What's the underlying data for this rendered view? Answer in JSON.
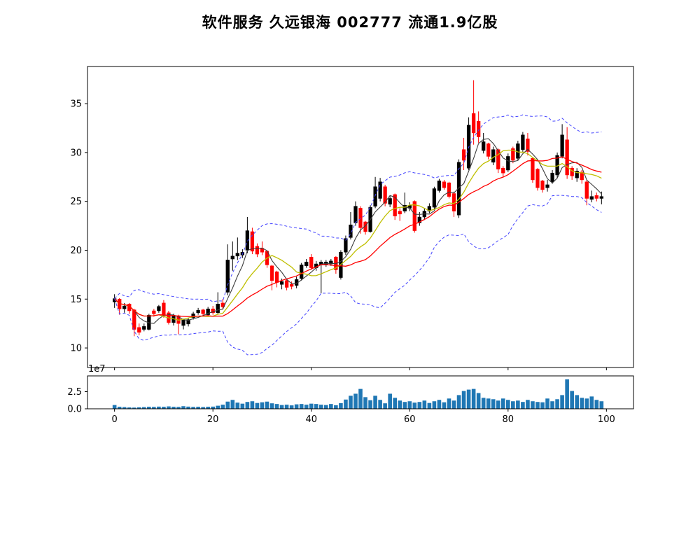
{
  "header": {
    "sector": "软件服务",
    "stock_name": "久远银海",
    "stock_code": "002777",
    "float_shares": "流通1.9亿股"
  },
  "chart_data": {
    "type": "candlestick",
    "title": "软件服务 久远银海 002777 流通1.9亿股",
    "panels": [
      "price",
      "volume"
    ],
    "x_axis": {
      "ticks": [
        0,
        20,
        40,
        60,
        80,
        100
      ],
      "xlim": [
        -5.5,
        105.5
      ]
    },
    "price_axis": {
      "ticks": [
        10,
        15,
        20,
        25,
        30,
        35
      ],
      "ylim": [
        8.0,
        38.8
      ]
    },
    "volume_axis": {
      "ticks": [
        {
          "v": 0,
          "label": "0.0"
        },
        {
          "v": 2.5,
          "label": "2.5"
        }
      ],
      "ylim": [
        0,
        4.8
      ],
      "offset_label": "1e7",
      "unit": 10000000
    },
    "colors": {
      "up": "#000000",
      "down": "#ff0000",
      "volume": "#1f77b4",
      "ma5": "#3c3c3c",
      "ma10": "#bfbf00",
      "ma20": "#ff0000",
      "band": "#4444ff",
      "spine": "#000000"
    },
    "overlays": [
      {
        "name": "MA5",
        "kind": "sma",
        "window": 5,
        "color_key": "ma5",
        "width": 1.1,
        "dash": ""
      },
      {
        "name": "MA10",
        "kind": "sma",
        "window": 10,
        "color_key": "ma10",
        "width": 1.3,
        "dash": ""
      },
      {
        "name": "MA20",
        "kind": "sma",
        "window": 20,
        "color_key": "ma20",
        "width": 1.3,
        "dash": ""
      },
      {
        "name": "BOLL",
        "kind": "bollinger",
        "window": 20,
        "mult": 2,
        "color_key": "band",
        "width": 1.0,
        "dash": "4 3"
      }
    ],
    "candles": {
      "open": [
        14.7,
        15.0,
        14.0,
        14.5,
        13.9,
        12.1,
        11.9,
        11.9,
        13.8,
        13.8,
        14.6,
        13.6,
        12.6,
        13.3,
        12.3,
        12.45,
        13.1,
        13.6,
        13.9,
        13.4,
        14.0,
        13.6,
        14.6,
        15.7,
        19.1,
        19.4,
        19.5,
        20.0,
        21.9,
        20.4,
        20.2,
        19.9,
        18.4,
        17.8,
        16.5,
        16.9,
        16.5,
        16.4,
        17.1,
        18.4,
        19.3,
        18.2,
        18.5,
        18.5,
        18.6,
        19.3,
        17.2,
        19.8,
        21.3,
        22.8,
        24.3,
        22.9,
        21.9,
        24.5,
        25.3,
        26.5,
        24.7,
        25.7,
        24.0,
        24.0,
        24.3,
        25.0,
        22.8,
        23.4,
        24.0,
        24.4,
        26.1,
        27.0,
        26.9,
        25.8,
        23.6,
        30.3,
        28.4,
        34.0,
        33.2,
        30.2,
        30.9,
        29.0,
        30.3,
        28.4,
        28.2,
        30.4,
        29.4,
        30.3,
        31.4,
        29.4,
        28.3,
        27.1,
        26.4,
        27.0,
        27.7,
        29.6,
        31.3,
        28.4,
        27.4,
        28.0,
        27.0,
        25.2,
        25.6,
        25.3
      ],
      "high": [
        15.5,
        15.1,
        14.6,
        14.6,
        14.0,
        12.5,
        12.5,
        13.5,
        14.0,
        14.4,
        14.9,
        13.8,
        13.5,
        13.4,
        13.0,
        13.1,
        13.7,
        14.1,
        14.0,
        14.2,
        14.3,
        15.7,
        15.0,
        20.6,
        20.9,
        21.3,
        20.1,
        23.4,
        22.3,
        20.7,
        20.9,
        20.0,
        18.5,
        17.9,
        17.1,
        17.0,
        16.8,
        17.3,
        18.7,
        19.1,
        19.6,
        18.9,
        19.0,
        19.0,
        19.1,
        19.4,
        20.0,
        21.5,
        23.9,
        25.0,
        24.5,
        23.0,
        24.6,
        27.5,
        27.4,
        26.7,
        25.6,
        25.8,
        24.3,
        25.9,
        24.9,
        25.1,
        23.9,
        24.3,
        24.8,
        26.5,
        27.3,
        27.2,
        27.0,
        26.0,
        29.3,
        31.5,
        33.6,
        37.4,
        34.2,
        32.0,
        31.0,
        30.6,
        30.4,
        28.6,
        29.9,
        30.6,
        31.2,
        32.1,
        32.0,
        29.5,
        28.4,
        27.2,
        27.2,
        28.2,
        30.0,
        32.9,
        32.6,
        28.6,
        28.4,
        28.2,
        27.2,
        26.1,
        25.9,
        26.0
      ],
      "low": [
        14.1,
        13.4,
        13.6,
        13.5,
        11.2,
        11.3,
        11.7,
        11.8,
        13.2,
        13.6,
        13.1,
        12.4,
        12.3,
        11.4,
        11.9,
        12.2,
        12.9,
        13.4,
        13.2,
        13.2,
        13.4,
        13.5,
        14.0,
        15.4,
        17.9,
        19.0,
        19.2,
        19.7,
        19.6,
        19.3,
        19.5,
        18.2,
        15.9,
        16.2,
        16.0,
        15.9,
        16.0,
        16.1,
        16.9,
        18.2,
        18.0,
        17.9,
        15.6,
        18.3,
        18.4,
        17.6,
        17.0,
        19.5,
        21.1,
        22.5,
        21.7,
        21.6,
        21.8,
        24.3,
        25.0,
        24.5,
        24.4,
        23.1,
        23.0,
        23.8,
        24.0,
        21.8,
        22.5,
        23.1,
        23.8,
        24.2,
        25.9,
        26.2,
        25.3,
        23.4,
        23.3,
        28.2,
        28.2,
        30.8,
        31.0,
        29.9,
        29.3,
        28.7,
        27.9,
        27.5,
        28.0,
        28.9,
        29.2,
        30.0,
        29.7,
        26.9,
        26.1,
        25.9,
        26.0,
        26.8,
        27.4,
        29.4,
        27.3,
        27.2,
        27.0,
        26.8,
        24.6,
        24.9,
        25.0,
        24.7
      ],
      "close": [
        15.05,
        14.0,
        14.3,
        13.8,
        11.9,
        11.6,
        12.2,
        13.35,
        13.5,
        14.25,
        13.3,
        12.6,
        13.25,
        12.5,
        12.85,
        12.9,
        13.5,
        13.85,
        13.5,
        14.0,
        13.6,
        14.5,
        14.2,
        19.0,
        19.4,
        19.7,
        19.8,
        22.0,
        19.9,
        19.6,
        19.8,
        18.5,
        16.9,
        16.7,
        16.8,
        16.2,
        16.3,
        17.0,
        18.5,
        18.8,
        18.2,
        18.6,
        18.8,
        18.8,
        18.9,
        18.0,
        19.8,
        21.2,
        22.6,
        24.5,
        22.3,
        21.9,
        24.4,
        26.5,
        27.0,
        24.8,
        25.3,
        23.5,
        23.7,
        24.6,
        24.6,
        22.0,
        23.4,
        24.0,
        24.5,
        26.3,
        27.1,
        26.4,
        25.5,
        24.0,
        29.0,
        29.2,
        32.8,
        32.0,
        31.6,
        31.1,
        29.6,
        30.3,
        28.3,
        27.9,
        29.6,
        29.2,
        30.9,
        31.8,
        30.1,
        27.2,
        26.4,
        26.2,
        26.7,
        27.9,
        29.7,
        31.8,
        27.7,
        27.6,
        28.1,
        27.2,
        25.3,
        25.5,
        25.3,
        25.5
      ]
    },
    "volume_1e7": [
      0.55,
      0.3,
      0.25,
      0.2,
      0.18,
      0.22,
      0.25,
      0.3,
      0.28,
      0.32,
      0.3,
      0.35,
      0.3,
      0.28,
      0.38,
      0.32,
      0.28,
      0.3,
      0.26,
      0.3,
      0.32,
      0.45,
      0.6,
      1.05,
      1.3,
      0.9,
      0.75,
      1.0,
      1.1,
      0.85,
      0.95,
      1.05,
      0.8,
      0.7,
      0.55,
      0.6,
      0.5,
      0.65,
      0.7,
      0.6,
      0.75,
      0.7,
      0.6,
      0.55,
      0.7,
      0.52,
      0.83,
      1.35,
      1.9,
      2.2,
      2.9,
      1.7,
      1.25,
      1.9,
      1.3,
      0.8,
      2.2,
      1.6,
      1.2,
      1.0,
      1.1,
      0.9,
      1.0,
      1.2,
      0.85,
      1.1,
      1.3,
      0.95,
      1.5,
      1.2,
      2.0,
      2.6,
      2.8,
      2.9,
      2.3,
      1.6,
      1.5,
      1.4,
      1.2,
      1.5,
      1.3,
      1.1,
      1.2,
      1.0,
      1.3,
      1.1,
      1.0,
      0.95,
      1.5,
      1.1,
      1.4,
      2.0,
      4.3,
      2.6,
      2.0,
      1.6,
      1.5,
      1.8,
      1.3,
      1.1
    ]
  }
}
